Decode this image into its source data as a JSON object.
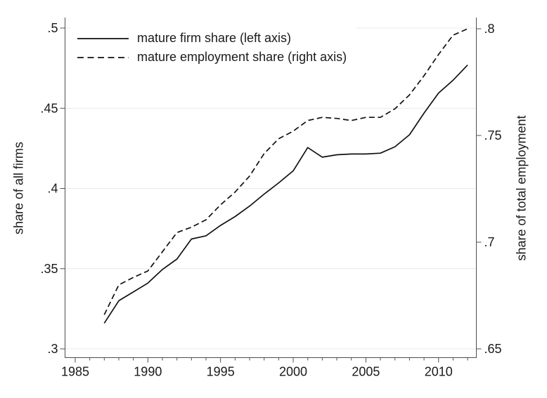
{
  "chart_data": {
    "type": "line",
    "title": "",
    "x_label": "",
    "x": [
      1987,
      1988,
      1989,
      1990,
      1991,
      1992,
      1993,
      1994,
      1995,
      1996,
      1997,
      1998,
      1999,
      2000,
      2001,
      2002,
      2003,
      2004,
      2005,
      2006,
      2007,
      2008,
      2009,
      2010,
      2011,
      2012
    ],
    "series": [
      {
        "name": "mature firm share (left axis)",
        "axis": "left",
        "line_style": "solid",
        "values": [
          0.316,
          0.33,
          0.3355,
          0.341,
          0.3495,
          0.356,
          0.3685,
          0.3705,
          0.377,
          0.3825,
          0.389,
          0.3965,
          0.4035,
          0.411,
          0.4255,
          0.4195,
          0.421,
          0.4215,
          0.4215,
          0.422,
          0.426,
          0.4335,
          0.447,
          0.4595,
          0.4675,
          0.477
        ]
      },
      {
        "name": "mature employment share (right axis)",
        "axis": "right",
        "line_style": "dashed",
        "values": [
          0.666,
          0.68,
          0.6835,
          0.6865,
          0.6955,
          0.7045,
          0.707,
          0.7105,
          0.7175,
          0.7235,
          0.731,
          0.7415,
          0.7485,
          0.752,
          0.757,
          0.7585,
          0.758,
          0.757,
          0.7585,
          0.7585,
          0.7625,
          0.769,
          0.778,
          0.788,
          0.797,
          0.8
        ]
      }
    ],
    "left_axis": {
      "label": "share of all firms",
      "tick_labels": [
        ".3",
        ".35",
        ".4",
        ".45",
        ".5"
      ],
      "tick_values": [
        0.3,
        0.35,
        0.4,
        0.45,
        0.5
      ],
      "range": [
        0.3,
        0.5
      ]
    },
    "right_axis": {
      "label": "share of total employment",
      "tick_labels": [
        ".65",
        ".7",
        ".75",
        ".8"
      ],
      "tick_values": [
        0.65,
        0.7,
        0.75,
        0.8
      ],
      "range": [
        0.65,
        0.8
      ]
    },
    "x_axis": {
      "tick_labels": [
        "1985",
        "1990",
        "1995",
        "2000",
        "2005",
        "2010"
      ],
      "tick_values": [
        1985,
        1990,
        1995,
        2000,
        2005,
        2010
      ],
      "minor_tick_years": [
        1986,
        1987,
        1988,
        1989,
        1991,
        1992,
        1993,
        1994,
        1996,
        1997,
        1998,
        1999,
        2001,
        2002,
        2003,
        2004,
        2006,
        2007,
        2008,
        2009,
        2011,
        2012
      ],
      "range": [
        1984.3,
        2012.6
      ]
    },
    "legend": {
      "position": "top-left-inside",
      "items": [
        {
          "label": "mature firm share (left axis)",
          "line_style": "solid"
        },
        {
          "label": "mature employment share (right axis)",
          "line_style": "dashed"
        }
      ]
    },
    "grid": {
      "horizontal_at_left_ticks": true,
      "vertical": false
    },
    "colors": {
      "line": "#111111",
      "grid": "#e8e8e8",
      "axis": "#4f4f4f",
      "text": "#1a1a1a",
      "background": "#ffffff"
    }
  }
}
